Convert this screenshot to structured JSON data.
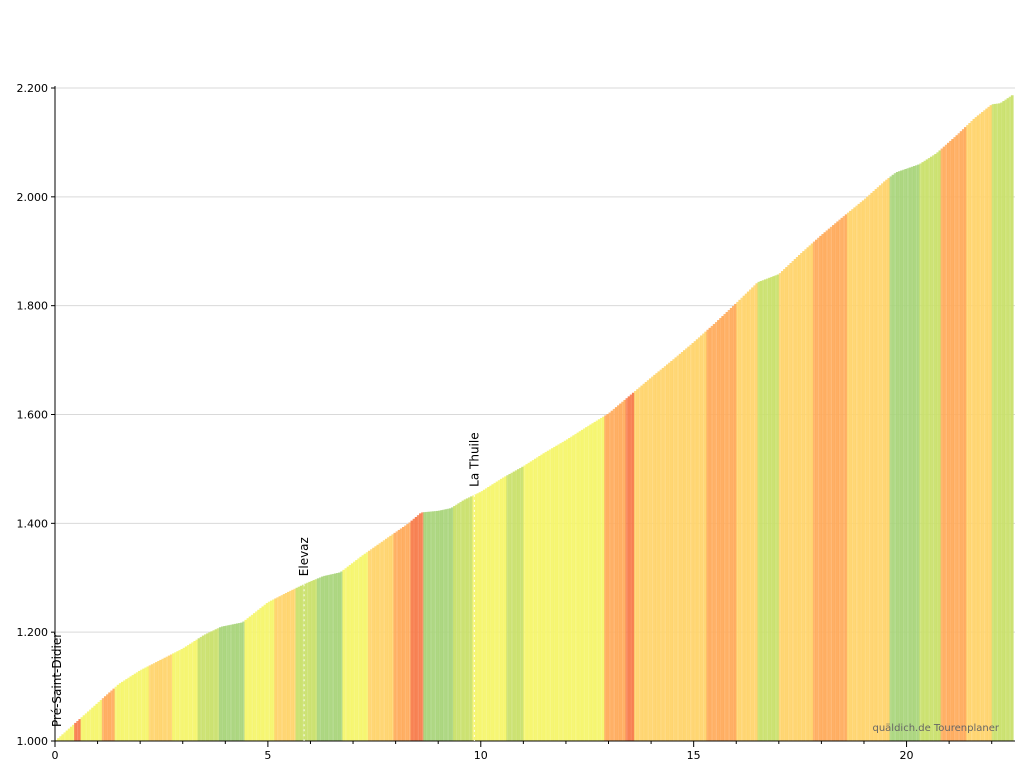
{
  "chart_data": {
    "type": "area",
    "xlabel": "",
    "ylabel": "",
    "xlim": [
      0,
      22.5
    ],
    "ylim": [
      1000,
      2200
    ],
    "x_ticks": [
      0,
      5,
      10,
      15,
      20
    ],
    "x_tick_labels": [
      "0",
      "5",
      "10",
      "15",
      "20"
    ],
    "y_ticks": [
      1000,
      1200,
      1400,
      1600,
      1800,
      2000,
      2200
    ],
    "y_tick_labels": [
      "1.000",
      "1.200",
      "1.400",
      "1.600",
      "1.800",
      "2.000",
      "2.200"
    ],
    "grid": "horizontal",
    "gradient_colors": {
      "flat": "#a8d47a",
      "easy": "#c9e06a",
      "moderate": "#f5f56a",
      "medium": "#ffd36a",
      "steep": "#ffaa5a",
      "very_steep": "#f77b4a"
    },
    "profile": [
      {
        "x": 0.0,
        "y": 1000
      },
      {
        "x": 0.5,
        "y": 1035
      },
      {
        "x": 1.0,
        "y": 1070
      },
      {
        "x": 1.5,
        "y": 1105
      },
      {
        "x": 2.0,
        "y": 1130
      },
      {
        "x": 2.5,
        "y": 1150
      },
      {
        "x": 3.0,
        "y": 1170
      },
      {
        "x": 3.5,
        "y": 1195
      },
      {
        "x": 3.9,
        "y": 1210
      },
      {
        "x": 4.4,
        "y": 1218
      },
      {
        "x": 5.0,
        "y": 1255
      },
      {
        "x": 5.5,
        "y": 1275
      },
      {
        "x": 5.9,
        "y": 1290
      },
      {
        "x": 6.3,
        "y": 1303
      },
      {
        "x": 6.7,
        "y": 1310
      },
      {
        "x": 7.2,
        "y": 1340
      },
      {
        "x": 7.8,
        "y": 1373
      },
      {
        "x": 8.3,
        "y": 1400
      },
      {
        "x": 8.6,
        "y": 1420
      },
      {
        "x": 9.0,
        "y": 1423
      },
      {
        "x": 9.3,
        "y": 1428
      },
      {
        "x": 9.6,
        "y": 1443
      },
      {
        "x": 10.0,
        "y": 1458
      },
      {
        "x": 10.5,
        "y": 1483
      },
      {
        "x": 11.0,
        "y": 1505
      },
      {
        "x": 11.5,
        "y": 1530
      },
      {
        "x": 12.0,
        "y": 1553
      },
      {
        "x": 12.5,
        "y": 1578
      },
      {
        "x": 13.0,
        "y": 1602
      },
      {
        "x": 13.5,
        "y": 1635
      },
      {
        "x": 14.0,
        "y": 1668
      },
      {
        "x": 14.5,
        "y": 1700
      },
      {
        "x": 15.0,
        "y": 1733
      },
      {
        "x": 15.5,
        "y": 1768
      },
      {
        "x": 16.0,
        "y": 1805
      },
      {
        "x": 16.5,
        "y": 1843
      },
      {
        "x": 17.0,
        "y": 1858
      },
      {
        "x": 17.5,
        "y": 1895
      },
      {
        "x": 18.0,
        "y": 1930
      },
      {
        "x": 18.5,
        "y": 1963
      },
      {
        "x": 19.0,
        "y": 1995
      },
      {
        "x": 19.5,
        "y": 2030
      },
      {
        "x": 19.75,
        "y": 2045
      },
      {
        "x": 20.3,
        "y": 2060
      },
      {
        "x": 20.7,
        "y": 2080
      },
      {
        "x": 21.2,
        "y": 2115
      },
      {
        "x": 21.6,
        "y": 2145
      },
      {
        "x": 22.0,
        "y": 2170
      },
      {
        "x": 22.2,
        "y": 2172
      },
      {
        "x": 22.5,
        "y": 2188
      }
    ],
    "segments": [
      {
        "from": 0.0,
        "to": 0.4,
        "grade": "moderate"
      },
      {
        "from": 0.4,
        "to": 0.55,
        "grade": "very_steep"
      },
      {
        "from": 0.55,
        "to": 1.1,
        "grade": "moderate"
      },
      {
        "from": 1.1,
        "to": 1.4,
        "grade": "steep"
      },
      {
        "from": 1.4,
        "to": 2.2,
        "grade": "moderate"
      },
      {
        "from": 2.2,
        "to": 2.7,
        "grade": "medium"
      },
      {
        "from": 2.7,
        "to": 3.3,
        "grade": "moderate"
      },
      {
        "from": 3.3,
        "to": 3.8,
        "grade": "easy"
      },
      {
        "from": 3.8,
        "to": 4.4,
        "grade": "flat"
      },
      {
        "from": 4.4,
        "to": 5.1,
        "grade": "moderate"
      },
      {
        "from": 5.1,
        "to": 5.6,
        "grade": "medium"
      },
      {
        "from": 5.6,
        "to": 6.1,
        "grade": "easy"
      },
      {
        "from": 6.1,
        "to": 6.7,
        "grade": "flat"
      },
      {
        "from": 6.7,
        "to": 7.3,
        "grade": "moderate"
      },
      {
        "from": 7.3,
        "to": 7.9,
        "grade": "medium"
      },
      {
        "from": 7.9,
        "to": 8.3,
        "grade": "steep"
      },
      {
        "from": 8.3,
        "to": 8.6,
        "grade": "very_steep"
      },
      {
        "from": 8.6,
        "to": 9.3,
        "grade": "flat"
      },
      {
        "from": 9.3,
        "to": 9.8,
        "grade": "easy"
      },
      {
        "from": 9.8,
        "to": 10.6,
        "grade": "moderate"
      },
      {
        "from": 10.6,
        "to": 11.0,
        "grade": "easy"
      },
      {
        "from": 11.0,
        "to": 12.2,
        "grade": "moderate"
      },
      {
        "from": 12.2,
        "to": 12.9,
        "grade": "moderate"
      },
      {
        "from": 12.9,
        "to": 13.4,
        "grade": "steep"
      },
      {
        "from": 13.4,
        "to": 13.6,
        "grade": "very_steep"
      },
      {
        "from": 13.6,
        "to": 14.4,
        "grade": "medium"
      },
      {
        "from": 14.4,
        "to": 15.3,
        "grade": "medium"
      },
      {
        "from": 15.3,
        "to": 16.0,
        "grade": "steep"
      },
      {
        "from": 16.0,
        "to": 16.5,
        "grade": "medium"
      },
      {
        "from": 16.5,
        "to": 17.0,
        "grade": "easy"
      },
      {
        "from": 17.0,
        "to": 17.8,
        "grade": "medium"
      },
      {
        "from": 17.8,
        "to": 18.6,
        "grade": "steep"
      },
      {
        "from": 18.6,
        "to": 19.6,
        "grade": "medium"
      },
      {
        "from": 19.6,
        "to": 20.3,
        "grade": "flat"
      },
      {
        "from": 20.3,
        "to": 20.8,
        "grade": "easy"
      },
      {
        "from": 20.8,
        "to": 21.4,
        "grade": "steep"
      },
      {
        "from": 21.4,
        "to": 22.0,
        "grade": "medium"
      },
      {
        "from": 22.0,
        "to": 22.5,
        "grade": "easy"
      }
    ],
    "places": [
      {
        "name": "Pré-Saint-Didier",
        "x": 0.0
      },
      {
        "name": "Elevaz",
        "x": 5.85
      },
      {
        "name": "La Thuile",
        "x": 9.85
      }
    ],
    "credit": "quäldich.de Tourenplaner"
  }
}
